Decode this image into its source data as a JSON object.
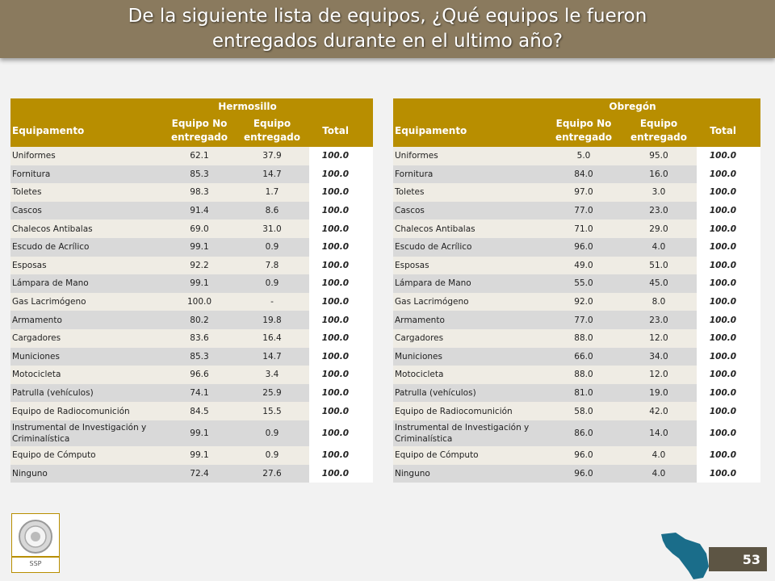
{
  "header": {
    "line1": "De la siguiente lista de equipos, ¿Qué equipos le fueron",
    "line2": "entregados durante en el ultimo año?"
  },
  "columns": {
    "equipment": "Equipamento",
    "not_delivered": "Equipo No entregado",
    "delivered": "Equipo entregado",
    "total": "Total"
  },
  "tables": {
    "hermosillo": {
      "city": "Hermosillo",
      "rows": [
        {
          "label": "Uniformes",
          "no": "62.1",
          "yes": "37.9",
          "total": "100.0"
        },
        {
          "label": "Fornitura",
          "no": "85.3",
          "yes": "14.7",
          "total": "100.0"
        },
        {
          "label": "Toletes",
          "no": "98.3",
          "yes": "1.7",
          "total": "100.0"
        },
        {
          "label": "Cascos",
          "no": "91.4",
          "yes": "8.6",
          "total": "100.0"
        },
        {
          "label": "Chalecos Antibalas",
          "no": "69.0",
          "yes": "31.0",
          "total": "100.0"
        },
        {
          "label": "Escudo de Acrílico",
          "no": "99.1",
          "yes": "0.9",
          "total": "100.0"
        },
        {
          "label": "Esposas",
          "no": "92.2",
          "yes": "7.8",
          "total": "100.0"
        },
        {
          "label": "Lámpara de Mano",
          "no": "99.1",
          "yes": "0.9",
          "total": "100.0"
        },
        {
          "label": "Gas Lacrimógeno",
          "no": "100.0",
          "yes": "-",
          "total": "100.0"
        },
        {
          "label": "Armamento",
          "no": "80.2",
          "yes": "19.8",
          "total": "100.0"
        },
        {
          "label": "Cargadores",
          "no": "83.6",
          "yes": "16.4",
          "total": "100.0"
        },
        {
          "label": "Municiones",
          "no": "85.3",
          "yes": "14.7",
          "total": "100.0"
        },
        {
          "label": "Motocicleta",
          "no": "96.6",
          "yes": "3.4",
          "total": "100.0"
        },
        {
          "label": "Patrulla (vehículos)",
          "no": "74.1",
          "yes": "25.9",
          "total": "100.0"
        },
        {
          "label": "Equipo de Radiocomunición",
          "no": "84.5",
          "yes": "15.5",
          "total": "100.0"
        },
        {
          "label": "Instrumental de Investigación y Criminalística",
          "no": "99.1",
          "yes": "0.9",
          "total": "100.0"
        },
        {
          "label": "Equipo de Cómputo",
          "no": "99.1",
          "yes": "0.9",
          "total": "100.0"
        },
        {
          "label": "Ninguno",
          "no": "72.4",
          "yes": "27.6",
          "total": "100.0"
        }
      ]
    },
    "obregon": {
      "city": "Obregón",
      "rows": [
        {
          "label": "Uniformes",
          "no": "5.0",
          "yes": "95.0",
          "total": "100.0"
        },
        {
          "label": "Fornitura",
          "no": "84.0",
          "yes": "16.0",
          "total": "100.0"
        },
        {
          "label": "Toletes",
          "no": "97.0",
          "yes": "3.0",
          "total": "100.0"
        },
        {
          "label": "Cascos",
          "no": "77.0",
          "yes": "23.0",
          "total": "100.0"
        },
        {
          "label": "Chalecos Antibalas",
          "no": "71.0",
          "yes": "29.0",
          "total": "100.0"
        },
        {
          "label": "Escudo de Acrílico",
          "no": "96.0",
          "yes": "4.0",
          "total": "100.0"
        },
        {
          "label": "Esposas",
          "no": "49.0",
          "yes": "51.0",
          "total": "100.0"
        },
        {
          "label": "Lámpara de Mano",
          "no": "55.0",
          "yes": "45.0",
          "total": "100.0"
        },
        {
          "label": "Gas Lacrimógeno",
          "no": "92.0",
          "yes": "8.0",
          "total": "100.0"
        },
        {
          "label": "Armamento",
          "no": "77.0",
          "yes": "23.0",
          "total": "100.0"
        },
        {
          "label": "Cargadores",
          "no": "88.0",
          "yes": "12.0",
          "total": "100.0"
        },
        {
          "label": "Municiones",
          "no": "66.0",
          "yes": "34.0",
          "total": "100.0"
        },
        {
          "label": "Motocicleta",
          "no": "88.0",
          "yes": "12.0",
          "total": "100.0"
        },
        {
          "label": "Patrulla (vehículos)",
          "no": "81.0",
          "yes": "19.0",
          "total": "100.0"
        },
        {
          "label": "Equipo de Radiocomunición",
          "no": "58.0",
          "yes": "42.0",
          "total": "100.0"
        },
        {
          "label": "Instrumental de Investigación y Criminalística",
          "no": "86.0",
          "yes": "14.0",
          "total": "100.0"
        },
        {
          "label": "Equipo de Cómputo",
          "no": "96.0",
          "yes": "4.0",
          "total": "100.0"
        },
        {
          "label": "Ninguno",
          "no": "96.0",
          "yes": "4.0",
          "total": "100.0"
        }
      ]
    }
  },
  "footer": {
    "logo_text": "SSP",
    "page_number": "53"
  },
  "colors": {
    "header_bg": "#8a7a5e",
    "table_header_bg": "#b88e00",
    "map_color": "#1a6d8a",
    "page_badge_bg": "#5d5544"
  }
}
